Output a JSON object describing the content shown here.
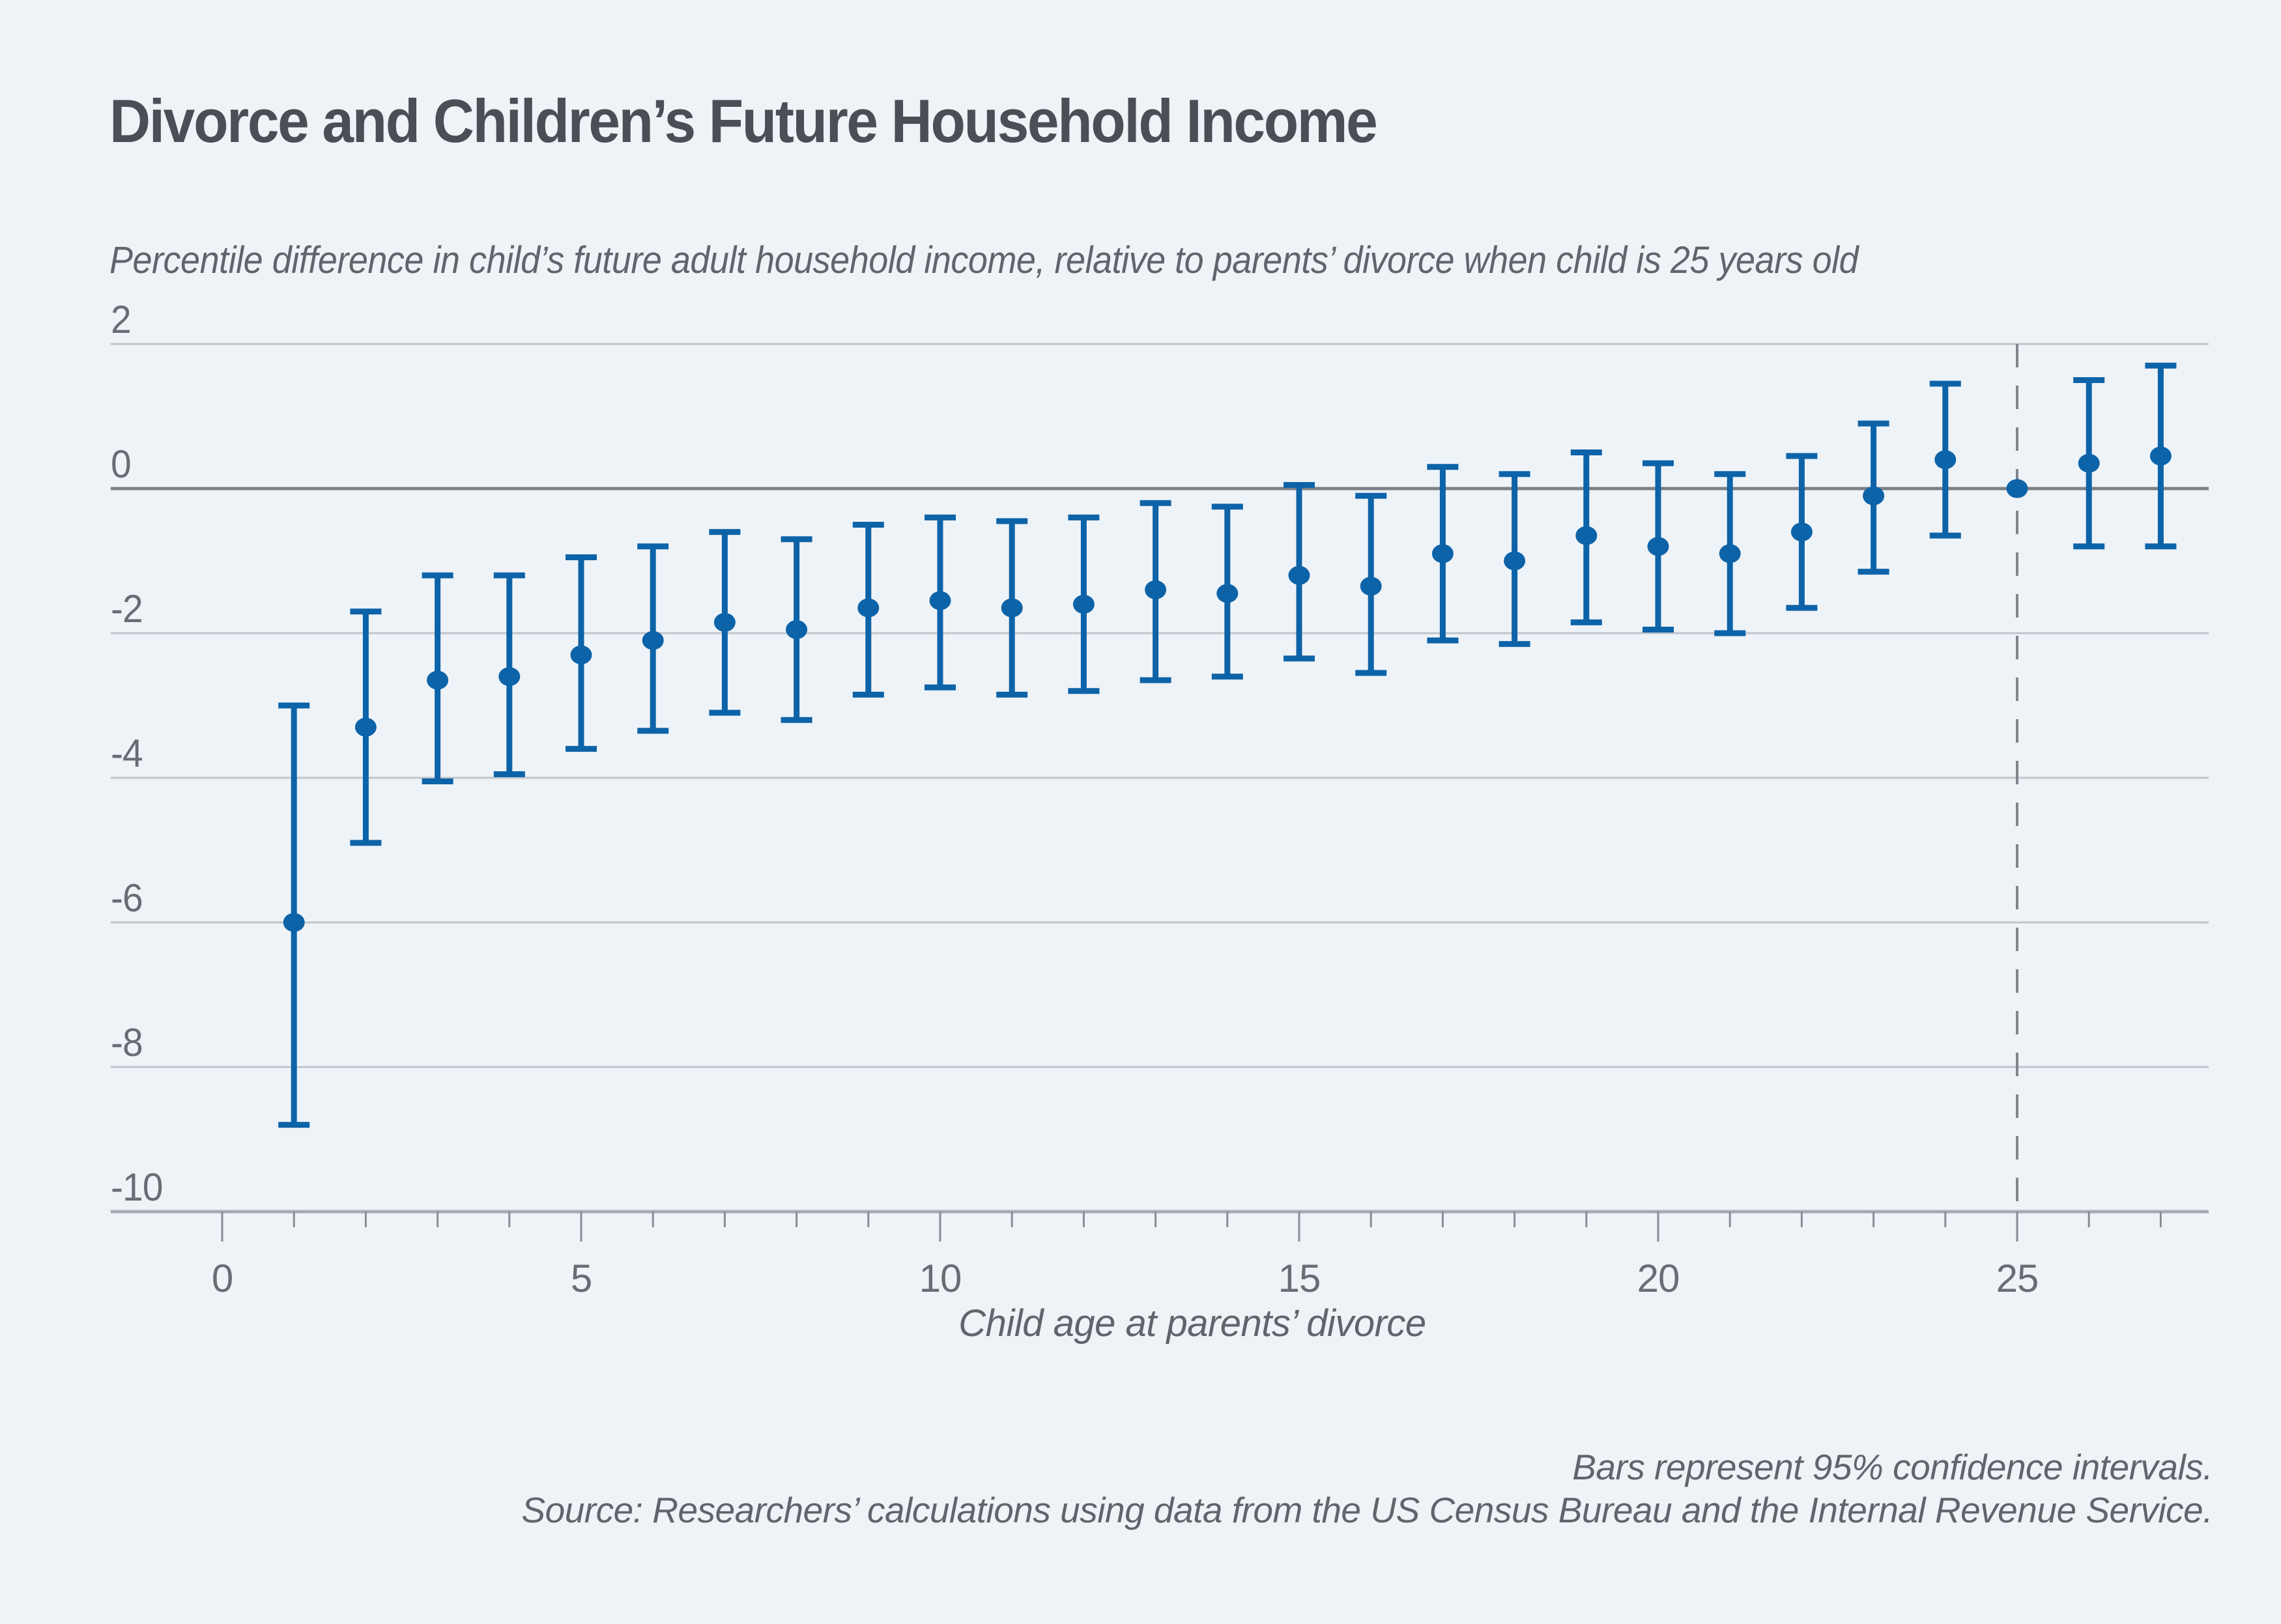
{
  "chart_data": {
    "type": "scatter",
    "title": "Divorce and Children’s Future Household Income",
    "subtitle": "Percentile difference in child’s future adult household income, relative to parents’ divorce when child is 25 years old",
    "xlabel": "Child age at parents’ divorce",
    "ylabel": "Percentile difference in child’s future adult household income",
    "xlim": [
      -1.6,
      28.4
    ],
    "ylim": [
      -10,
      2
    ],
    "y_ticks": [
      2,
      0,
      -2,
      -4,
      -6,
      -8,
      -10
    ],
    "x_ticks_labeled": [
      0,
      5,
      10,
      15,
      20,
      25
    ],
    "x_minor_ticks_every": 1,
    "x_tick_range": [
      0,
      27
    ],
    "grid": "horizontal",
    "legend": "none",
    "reference_line_x": 25,
    "reference_point_note": "Age 25 is the reference point: value 0 with no confidence interval, marked by a vertical dashed line",
    "points": [
      {
        "age": 1,
        "value": -6.0,
        "ci_low": -8.8,
        "ci_high": -3.0
      },
      {
        "age": 2,
        "value": -3.3,
        "ci_low": -4.9,
        "ci_high": -1.7
      },
      {
        "age": 3,
        "value": -2.65,
        "ci_low": -4.05,
        "ci_high": -1.2
      },
      {
        "age": 4,
        "value": -2.6,
        "ci_low": -3.95,
        "ci_high": -1.2
      },
      {
        "age": 5,
        "value": -2.3,
        "ci_low": -3.6,
        "ci_high": -0.95
      },
      {
        "age": 6,
        "value": -2.1,
        "ci_low": -3.35,
        "ci_high": -0.8
      },
      {
        "age": 7,
        "value": -1.85,
        "ci_low": -3.1,
        "ci_high": -0.6
      },
      {
        "age": 8,
        "value": -1.95,
        "ci_low": -3.2,
        "ci_high": -0.7
      },
      {
        "age": 9,
        "value": -1.65,
        "ci_low": -2.85,
        "ci_high": -0.5
      },
      {
        "age": 10,
        "value": -1.55,
        "ci_low": -2.75,
        "ci_high": -0.4
      },
      {
        "age": 11,
        "value": -1.65,
        "ci_low": -2.85,
        "ci_high": -0.45
      },
      {
        "age": 12,
        "value": -1.6,
        "ci_low": -2.8,
        "ci_high": -0.4
      },
      {
        "age": 13,
        "value": -1.4,
        "ci_low": -2.65,
        "ci_high": -0.2
      },
      {
        "age": 14,
        "value": -1.45,
        "ci_low": -2.6,
        "ci_high": -0.25
      },
      {
        "age": 15,
        "value": -1.2,
        "ci_low": -2.35,
        "ci_high": 0.05
      },
      {
        "age": 16,
        "value": -1.35,
        "ci_low": -2.55,
        "ci_high": -0.1
      },
      {
        "age": 17,
        "value": -0.9,
        "ci_low": -2.1,
        "ci_high": 0.3
      },
      {
        "age": 18,
        "value": -1.0,
        "ci_low": -2.15,
        "ci_high": 0.2
      },
      {
        "age": 19,
        "value": -0.65,
        "ci_low": -1.85,
        "ci_high": 0.5
      },
      {
        "age": 20,
        "value": -0.8,
        "ci_low": -1.95,
        "ci_high": 0.35
      },
      {
        "age": 21,
        "value": -0.9,
        "ci_low": -2.0,
        "ci_high": 0.2
      },
      {
        "age": 22,
        "value": -0.6,
        "ci_low": -1.65,
        "ci_high": 0.45
      },
      {
        "age": 23,
        "value": -0.1,
        "ci_low": -1.15,
        "ci_high": 0.9
      },
      {
        "age": 24,
        "value": 0.4,
        "ci_low": -0.65,
        "ci_high": 1.45
      },
      {
        "age": 25,
        "value": 0.0,
        "ci_low": null,
        "ci_high": null,
        "reference": true
      },
      {
        "age": 26,
        "value": 0.35,
        "ci_low": -0.8,
        "ci_high": 1.5
      },
      {
        "age": 27,
        "value": 0.45,
        "ci_low": -0.8,
        "ci_high": 1.7
      }
    ],
    "footnotes": [
      "Bars represent 95% confidence intervals.",
      "Source: Researchers’ calculations using data from the US Census Bureau and the Internal Revenue Service."
    ]
  },
  "colors": {
    "background": "#eef3f8",
    "point_blue": "#0d63a8",
    "gridline": "#c0c5cb",
    "zero_line": "#7c8187",
    "axis_line": "#a5abb1",
    "tick_mark": "#878d93",
    "dashed_line": "#80858b",
    "title_text": "#4a4f55",
    "caption_text": "#60656c",
    "tick_text": "#686d74"
  }
}
